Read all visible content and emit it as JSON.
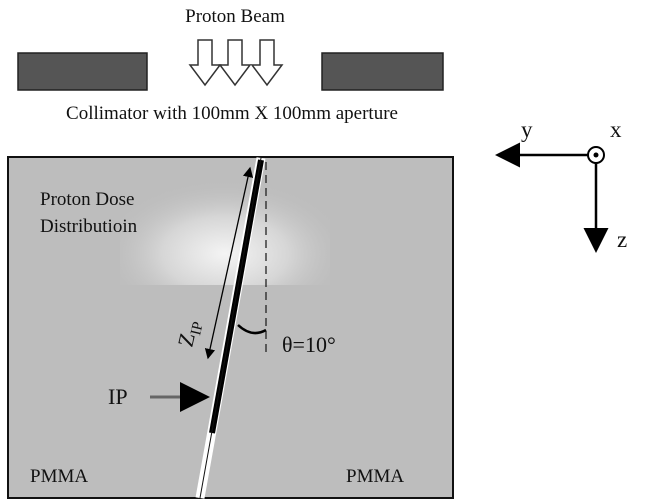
{
  "header": {
    "title": "Proton Beam",
    "collimator": "Collimator with 100mm X 100mm aperture"
  },
  "labels": {
    "dose": [
      "Proton Dose",
      "Distributioin"
    ],
    "z_ip": {
      "symbol": "Z",
      "subscript": "IP"
    },
    "angle": "θ=10°",
    "ip": "IP",
    "left_material": "PMMA",
    "right_material": "PMMA"
  },
  "axes": {
    "y": "y",
    "x": "x",
    "z": "z"
  }
}
